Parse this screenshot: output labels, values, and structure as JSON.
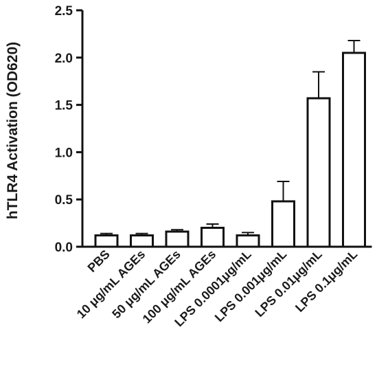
{
  "chart_data": {
    "type": "bar",
    "title": "",
    "xlabel": "",
    "ylabel": "hTLR4 Activation (OD620)",
    "ylim": [
      0,
      2.5
    ],
    "yticks": [
      "0.0",
      "0.5",
      "1.0",
      "1.5",
      "2.0",
      "2.5"
    ],
    "categories": [
      "PBS",
      "10 μg/mL AGEs",
      "50 μg/mL AGEs",
      "100 μg/mL AGEs",
      "LPS 0.0001μg/mL",
      "LPS 0.001μg/mL",
      "LPS 0.01μg/mL",
      "LPS 0.1μg/mL"
    ],
    "values": [
      0.12,
      0.12,
      0.16,
      0.2,
      0.12,
      0.48,
      1.57,
      2.05
    ],
    "errors": [
      0.02,
      0.02,
      0.02,
      0.04,
      0.03,
      0.21,
      0.28,
      0.13
    ],
    "grid": false,
    "bar_fill": "#ffffff",
    "bar_stroke": "#111111"
  }
}
